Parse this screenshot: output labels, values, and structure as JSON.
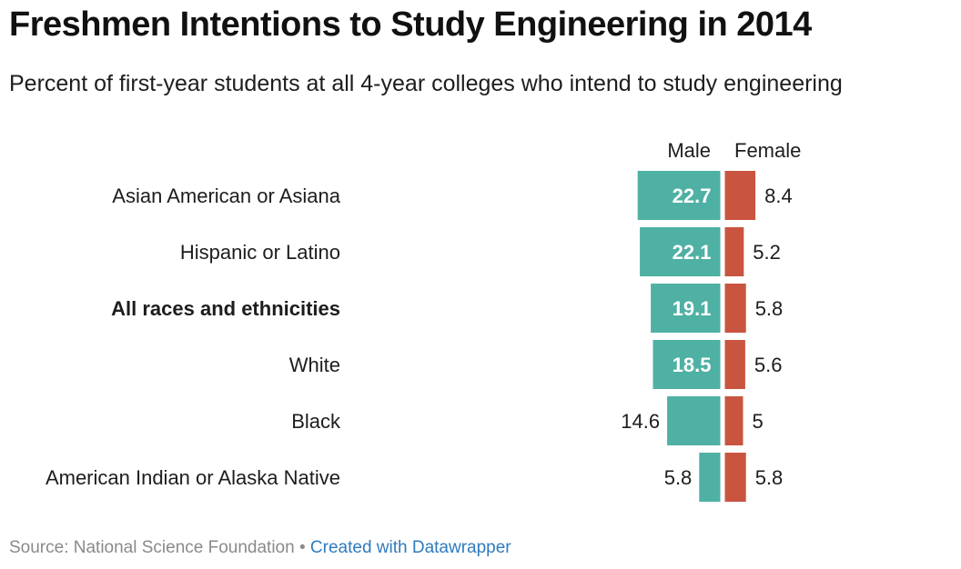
{
  "title": "Freshmen Intentions to Study Engineering in 2014",
  "subtitle": "Percent of first-year students at all 4-year colleges who intend to study engineering",
  "footer": {
    "source": "Source: National Science Foundation",
    "separator": " • ",
    "credit": "Created with Datawrapper"
  },
  "chart_data": {
    "type": "bar",
    "orientation": "horizontal-diverging",
    "categories": [
      "Asian American or Asiana",
      "Hispanic or Latino",
      "All races and ethnicities",
      "White",
      "Black",
      "American Indian or Alaska Native"
    ],
    "bold_categories": [
      "All races and ethnicities"
    ],
    "series": [
      {
        "name": "Male",
        "color": "#4fb0a4",
        "values": [
          22.7,
          22.1,
          19.1,
          18.5,
          14.6,
          5.8
        ],
        "labels": [
          "22.7",
          "22.1",
          "19.1",
          "18.5",
          "14.6",
          "5.8"
        ]
      },
      {
        "name": "Female",
        "color": "#c9543f",
        "values": [
          8.4,
          5.2,
          5.8,
          5.6,
          5,
          5.8
        ],
        "labels": [
          "8.4",
          "5.2",
          "5.8",
          "5.6",
          "5",
          "5.8"
        ]
      }
    ],
    "legend_placement": "top",
    "grid": false
  }
}
